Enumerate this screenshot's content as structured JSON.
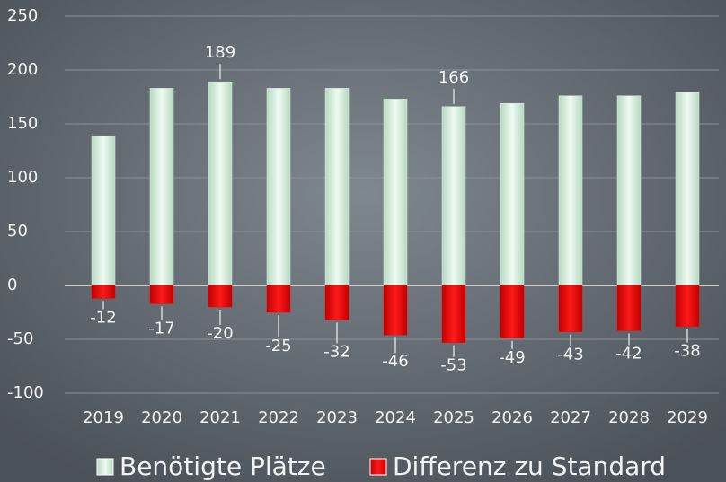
{
  "chart_data": {
    "type": "bar",
    "categories": [
      "2019",
      "2020",
      "2021",
      "2022",
      "2023",
      "2024",
      "2025",
      "2026",
      "2027",
      "2028",
      "2029"
    ],
    "series": [
      {
        "name": "Benötigte Plätze",
        "color": "#d8f2df",
        "values": [
          139,
          183,
          189,
          183,
          183,
          173,
          166,
          169,
          176,
          176,
          179
        ],
        "value_labels": [
          null,
          null,
          "189",
          null,
          null,
          null,
          "166",
          null,
          null,
          null,
          null
        ]
      },
      {
        "name": "Differenz zu Standard",
        "color": "#ff0000",
        "values": [
          -12,
          -17,
          -20,
          -25,
          -32,
          -46,
          -53,
          -49,
          -43,
          -42,
          -38
        ]
      }
    ],
    "ylim": [
      -100,
      250
    ],
    "yticks": [
      -100,
      -50,
      0,
      50,
      100,
      150,
      200,
      250
    ],
    "grid": true
  }
}
